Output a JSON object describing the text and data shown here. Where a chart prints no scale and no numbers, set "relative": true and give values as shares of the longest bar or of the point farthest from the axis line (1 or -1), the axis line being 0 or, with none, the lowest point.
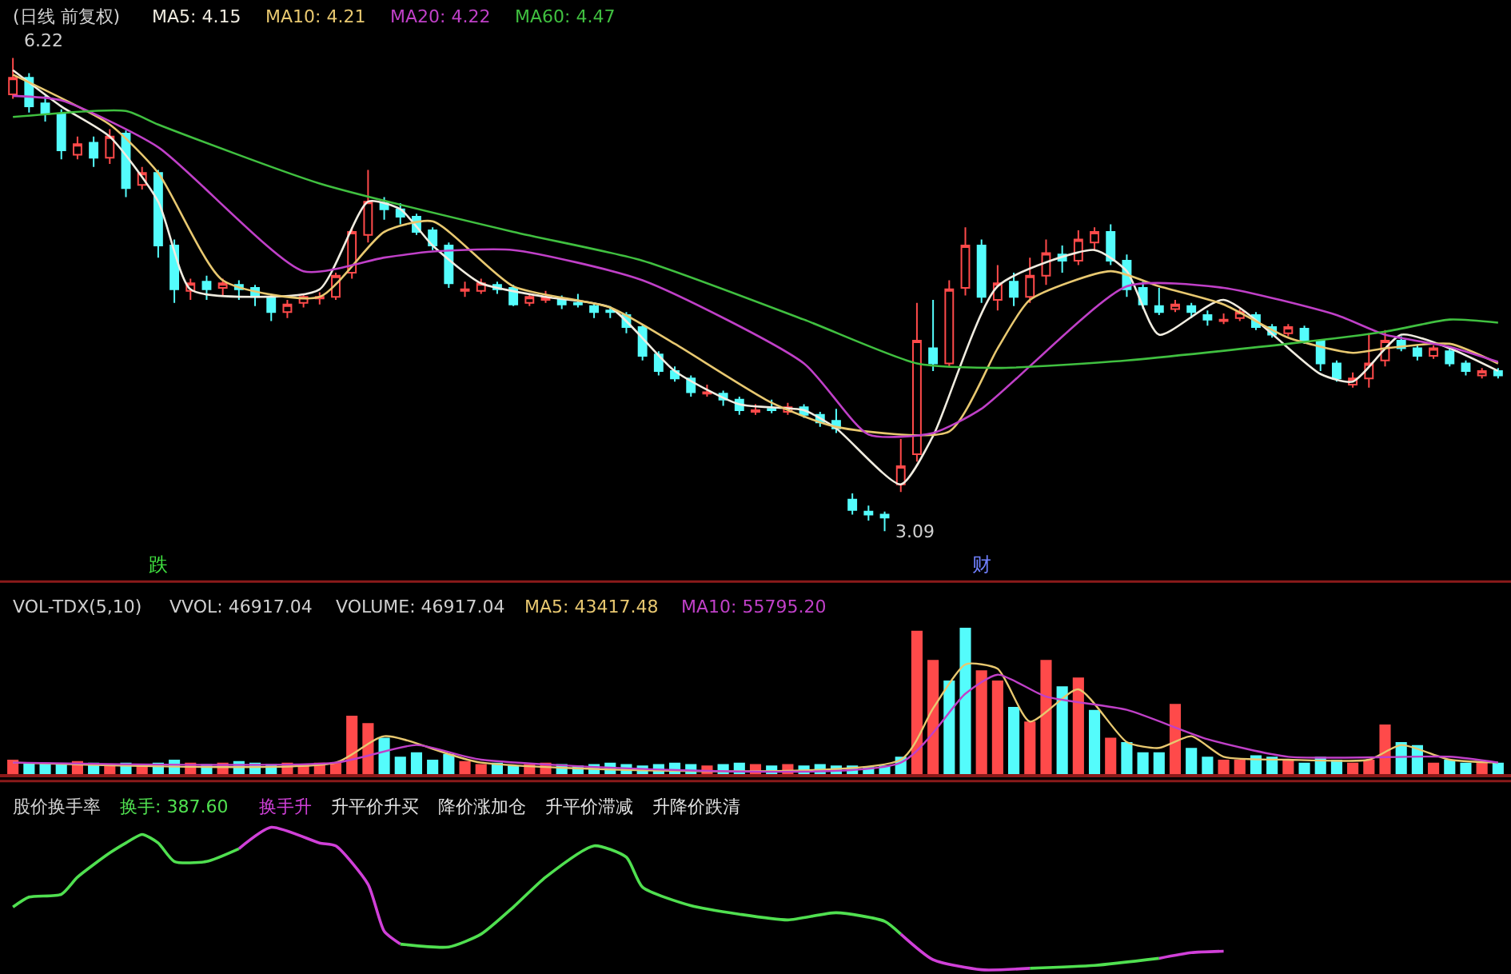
{
  "chart_data": [
    {
      "type": "candlestick",
      "title": "(日线 前复权)",
      "categories": [
        null,
        null,
        null,
        null,
        null,
        null,
        null,
        null,
        null,
        null,
        null,
        null,
        null,
        null,
        null,
        null,
        null,
        null,
        null,
        null,
        null,
        null,
        null,
        null,
        null,
        null,
        null,
        null,
        null,
        null,
        null,
        null,
        null,
        null,
        null,
        null,
        null,
        null,
        null,
        null,
        null,
        null,
        null,
        null,
        null,
        null,
        null,
        null,
        null,
        null,
        null,
        null,
        null,
        null,
        null,
        null,
        null,
        null,
        null,
        null,
        null,
        null,
        null,
        null,
        null,
        null,
        null,
        null,
        null,
        null,
        null,
        null,
        null,
        null,
        null,
        null,
        null,
        null,
        null,
        null,
        null,
        null,
        null,
        null,
        null,
        null,
        null,
        null,
        null,
        null,
        null,
        null,
        null
      ],
      "ohlc": [
        [
          5.98,
          6.22,
          5.95,
          6.09
        ],
        [
          6.09,
          6.12,
          5.86,
          5.9
        ],
        [
          5.92,
          5.97,
          5.8,
          5.85
        ],
        [
          5.85,
          5.88,
          5.55,
          5.61
        ],
        [
          5.58,
          5.7,
          5.55,
          5.65
        ],
        [
          5.66,
          5.7,
          5.5,
          5.56
        ],
        [
          5.56,
          5.75,
          5.52,
          5.7
        ],
        [
          5.72,
          5.74,
          5.3,
          5.36
        ],
        [
          5.38,
          5.5,
          5.35,
          5.46
        ],
        [
          5.46,
          5.48,
          4.9,
          4.98
        ],
        [
          4.98,
          5.02,
          4.6,
          4.69
        ],
        [
          4.68,
          4.76,
          4.62,
          4.73
        ],
        [
          4.74,
          4.78,
          4.62,
          4.69
        ],
        [
          4.7,
          4.76,
          4.65,
          4.73
        ],
        [
          4.72,
          4.75,
          4.62,
          4.69
        ],
        [
          4.7,
          4.72,
          4.58,
          4.64
        ],
        [
          4.64,
          4.66,
          4.48,
          4.54
        ],
        [
          4.54,
          4.62,
          4.5,
          4.59
        ],
        [
          4.6,
          4.66,
          4.57,
          4.64
        ],
        [
          4.63,
          4.67,
          4.59,
          4.64
        ],
        [
          4.64,
          4.8,
          4.62,
          4.78
        ],
        [
          4.8,
          5.1,
          4.76,
          5.07
        ],
        [
          5.05,
          5.48,
          5.0,
          5.27
        ],
        [
          5.26,
          5.3,
          5.15,
          5.22
        ],
        [
          5.22,
          5.26,
          5.12,
          5.17
        ],
        [
          5.17,
          5.19,
          5.05,
          5.07
        ],
        [
          5.08,
          5.1,
          4.95,
          4.98
        ],
        [
          4.98,
          5.0,
          4.7,
          4.73
        ],
        [
          4.68,
          4.74,
          4.64,
          4.69
        ],
        [
          4.68,
          4.76,
          4.66,
          4.73
        ],
        [
          4.72,
          4.74,
          4.66,
          4.69
        ],
        [
          4.7,
          4.72,
          4.58,
          4.59
        ],
        [
          4.6,
          4.66,
          4.58,
          4.64
        ],
        [
          4.62,
          4.68,
          4.6,
          4.64
        ],
        [
          4.63,
          4.65,
          4.56,
          4.59
        ],
        [
          4.6,
          4.66,
          4.57,
          4.59
        ],
        [
          4.58,
          4.6,
          4.5,
          4.54
        ],
        [
          4.55,
          4.58,
          4.5,
          4.54
        ],
        [
          4.52,
          4.54,
          4.4,
          4.44
        ],
        [
          4.44,
          4.46,
          4.22,
          4.25
        ],
        [
          4.26,
          4.28,
          4.12,
          4.15
        ],
        [
          4.15,
          4.18,
          4.08,
          4.1
        ],
        [
          4.1,
          4.12,
          3.98,
          4.01
        ],
        [
          4.0,
          4.06,
          3.98,
          4.01
        ],
        [
          4.0,
          4.02,
          3.92,
          3.96
        ],
        [
          3.96,
          3.98,
          3.86,
          3.89
        ],
        [
          3.88,
          3.93,
          3.86,
          3.89
        ],
        [
          3.9,
          3.96,
          3.87,
          3.89
        ],
        [
          3.88,
          3.94,
          3.86,
          3.91
        ],
        [
          3.91,
          3.93,
          3.84,
          3.86
        ],
        [
          3.86,
          3.88,
          3.78,
          3.81
        ],
        [
          3.82,
          3.9,
          3.74,
          3.77
        ],
        [
          3.3,
          3.34,
          3.2,
          3.23
        ],
        [
          3.22,
          3.26,
          3.16,
          3.2
        ],
        [
          3.2,
          3.22,
          3.09,
          3.18
        ],
        [
          3.4,
          3.7,
          3.35,
          3.52
        ],
        [
          3.6,
          4.6,
          3.55,
          4.35
        ],
        [
          4.3,
          4.62,
          4.15,
          4.2
        ],
        [
          4.2,
          4.75,
          4.18,
          4.69
        ],
        [
          4.7,
          5.1,
          4.65,
          4.98
        ],
        [
          4.98,
          5.02,
          4.6,
          4.64
        ],
        [
          4.62,
          4.85,
          4.55,
          4.73
        ],
        [
          4.74,
          4.8,
          4.58,
          4.64
        ],
        [
          4.64,
          4.9,
          4.6,
          4.78
        ],
        [
          4.78,
          5.02,
          4.72,
          4.93
        ],
        [
          4.92,
          4.98,
          4.8,
          4.88
        ],
        [
          4.88,
          5.08,
          4.85,
          5.02
        ],
        [
          5.0,
          5.1,
          4.95,
          5.07
        ],
        [
          5.07,
          5.12,
          4.85,
          4.88
        ],
        [
          4.88,
          4.92,
          4.64,
          4.69
        ],
        [
          4.7,
          4.74,
          4.56,
          4.59
        ],
        [
          4.58,
          4.7,
          4.52,
          4.54
        ],
        [
          4.56,
          4.62,
          4.54,
          4.59
        ],
        [
          4.58,
          4.6,
          4.5,
          4.54
        ],
        [
          4.52,
          4.55,
          4.45,
          4.49
        ],
        [
          4.48,
          4.53,
          4.46,
          4.49
        ],
        [
          4.5,
          4.56,
          4.48,
          4.54
        ],
        [
          4.52,
          4.54,
          4.42,
          4.44
        ],
        [
          4.44,
          4.46,
          4.37,
          4.39
        ],
        [
          4.4,
          4.46,
          4.38,
          4.44
        ],
        [
          4.43,
          4.45,
          4.33,
          4.35
        ],
        [
          4.35,
          4.36,
          4.15,
          4.2
        ],
        [
          4.2,
          4.22,
          4.08,
          4.1
        ],
        [
          4.06,
          4.14,
          4.04,
          4.1
        ],
        [
          4.1,
          4.4,
          4.04,
          4.2
        ],
        [
          4.22,
          4.42,
          4.18,
          4.35
        ],
        [
          4.35,
          4.38,
          4.28,
          4.3
        ],
        [
          4.3,
          4.32,
          4.22,
          4.25
        ],
        [
          4.25,
          4.32,
          4.23,
          4.3
        ],
        [
          4.28,
          4.3,
          4.18,
          4.2
        ],
        [
          4.2,
          4.22,
          4.12,
          4.15
        ],
        [
          4.12,
          4.17,
          4.1,
          4.15
        ],
        [
          4.15,
          4.17,
          4.1,
          4.12
        ]
      ],
      "colors": [
        "#ff4a4a",
        "#54fcfc",
        "#54fcfc",
        "#54fcfc",
        "#ff4a4a",
        "#54fcfc",
        "#ff4a4a",
        "#54fcfc",
        "#ff4a4a",
        "#54fcfc",
        "#54fcfc",
        "#ff4a4a",
        "#54fcfc",
        "#ff4a4a",
        "#54fcfc",
        "#54fcfc",
        "#54fcfc",
        "#ff4a4a",
        "#ff4a4a",
        "#ff4a4a",
        "#ff4a4a",
        "#ff4a4a",
        "#ff4a4a",
        "#54fcfc",
        "#54fcfc",
        "#54fcfc",
        "#54fcfc",
        "#54fcfc",
        "#ff4a4a",
        "#ff4a4a",
        "#54fcfc",
        "#54fcfc",
        "#ff4a4a",
        "#ff4a4a",
        "#54fcfc",
        "#54fcfc",
        "#54fcfc",
        "#54fcfc",
        "#54fcfc",
        "#54fcfc",
        "#54fcfc",
        "#54fcfc",
        "#54fcfc",
        "#ff4a4a",
        "#54fcfc",
        "#54fcfc",
        "#ff4a4a",
        "#54fcfc",
        "#ff4a4a",
        "#54fcfc",
        "#54fcfc",
        "#54fcfc",
        "#54fcfc",
        "#54fcfc",
        "#54fcfc",
        "#ff4a4a",
        "#ff4a4a",
        "#54fcfc",
        "#ff4a4a",
        "#ff4a4a",
        "#54fcfc",
        "#ff4a4a",
        "#54fcfc",
        "#ff4a4a",
        "#ff4a4a",
        "#54fcfc",
        "#ff4a4a",
        "#ff4a4a",
        "#54fcfc",
        "#54fcfc",
        "#54fcfc",
        "#54fcfc",
        "#ff4a4a",
        "#54fcfc",
        "#54fcfc",
        "#ff4a4a",
        "#ff4a4a",
        "#54fcfc",
        "#54fcfc",
        "#ff4a4a",
        "#54fcfc",
        "#54fcfc",
        "#54fcfc",
        "#ff4a4a",
        "#ff4a4a",
        "#ff4a4a",
        "#54fcfc",
        "#54fcfc",
        "#ff4a4a",
        "#54fcfc",
        "#54fcfc",
        "#ff4a4a",
        "#54fcfc"
      ],
      "series": [
        {
          "type": "line",
          "name": "MA5: 4.15",
          "color": "#f0ece0",
          "values": [
            6.14,
            null,
            null,
            5.9,
            null,
            null,
            5.7,
            null,
            null,
            5.27,
            null,
            4.69,
            null,
            null,
            null,
            4.64,
            null,
            null,
            null,
            4.69,
            null,
            null,
            5.27,
            null,
            5.22,
            null,
            4.98,
            null,
            null,
            4.73,
            null,
            null,
            null,
            4.64,
            null,
            null,
            null,
            4.57,
            null,
            null,
            null,
            4.15,
            null,
            null,
            null,
            3.93,
            null,
            null,
            null,
            3.89,
            null,
            3.77,
            null,
            null,
            null,
            3.4,
            null,
            3.72,
            null,
            null,
            null,
            4.71,
            null,
            null,
            null,
            null,
            null,
            4.95,
            null,
            4.81,
            null,
            4.39,
            null,
            null,
            null,
            4.62,
            null,
            null,
            null,
            null,
            null,
            4.13,
            null,
            4.08,
            null,
            null,
            4.39,
            null,
            null,
            4.3,
            null,
            null,
            4.15
          ]
        },
        {
          "type": "line",
          "name": "MA10: 4.21",
          "color": "#e8c870",
          "values": [
            6.11,
            null,
            null,
            null,
            null,
            null,
            5.78,
            null,
            null,
            5.46,
            null,
            null,
            null,
            4.75,
            null,
            null,
            null,
            null,
            null,
            4.64,
            null,
            null,
            null,
            5.07,
            null,
            null,
            5.14,
            null,
            null,
            null,
            null,
            4.71,
            null,
            null,
            null,
            null,
            null,
            4.57,
            null,
            null,
            null,
            4.33,
            null,
            null,
            null,
            null,
            null,
            3.94,
            null,
            null,
            null,
            3.78,
            null,
            null,
            null,
            null,
            null,
            null,
            3.75,
            null,
            null,
            4.3,
            null,
            4.62,
            null,
            null,
            null,
            null,
            4.81,
            null,
            null,
            4.71,
            null,
            null,
            null,
            4.59,
            null,
            null,
            null,
            4.37,
            null,
            null,
            null,
            4.27,
            null,
            4.3,
            null,
            null,
            null,
            4.33,
            null,
            null,
            4.2
          ]
        },
        {
          "type": "line",
          "name": "MA20: 4.22",
          "color": "#c040c8",
          "values": [
            5.97,
            null,
            null,
            5.94,
            null,
            null,
            null,
            null,
            null,
            5.63,
            null,
            null,
            null,
            null,
            null,
            null,
            null,
            null,
            4.81,
            null,
            null,
            null,
            null,
            4.9,
            null,
            null,
            4.94,
            null,
            null,
            null,
            null,
            4.95,
            null,
            null,
            null,
            null,
            null,
            null,
            null,
            4.75,
            null,
            null,
            null,
            null,
            null,
            null,
            null,
            null,
            null,
            4.2,
            null,
            null,
            null,
            3.73,
            null,
            null,
            null,
            3.74,
            null,
            null,
            3.9,
            null,
            null,
            null,
            null,
            null,
            null,
            null,
            null,
            4.71,
            null,
            null,
            null,
            null,
            null,
            4.7,
            null,
            null,
            null,
            null,
            null,
            null,
            4.52,
            null,
            null,
            4.39,
            null,
            null,
            null,
            4.31,
            null,
            null,
            4.21
          ]
        },
        {
          "type": "line",
          "name": "MA60: 4.47",
          "color": "#40c040",
          "values": [
            5.83,
            null,
            null,
            null,
            null,
            null,
            null,
            5.87,
            null,
            5.78,
            null,
            null,
            null,
            null,
            null,
            null,
            null,
            null,
            null,
            5.39,
            null,
            null,
            null,
            null,
            null,
            null,
            null,
            null,
            null,
            null,
            null,
            5.07,
            null,
            null,
            null,
            null,
            null,
            null,
            null,
            4.88,
            null,
            null,
            null,
            null,
            null,
            null,
            null,
            null,
            null,
            4.49,
            null,
            null,
            null,
            null,
            null,
            null,
            4.2,
            null,
            null,
            null,
            null,
            4.17,
            null,
            null,
            null,
            null,
            null,
            null,
            null,
            4.22,
            null,
            null,
            null,
            null,
            null,
            null,
            null,
            null,
            null,
            4.33,
            null,
            null,
            null,
            null,
            null,
            4.41,
            null,
            null,
            null,
            4.49,
            null,
            null,
            4.47
          ]
        }
      ],
      "annotations": [
        "6.22",
        "3.09",
        "跌",
        "财"
      ]
    },
    {
      "type": "bar",
      "relative": true,
      "title": "VOL-TDX(5,10)",
      "annotations": [
        "VVOL: 46917.04",
        "VOLUME: 46917.04"
      ],
      "categories": [
        null,
        null,
        null,
        null,
        null,
        null,
        null,
        null,
        null,
        null,
        null,
        null,
        null,
        null,
        null,
        null,
        null,
        null,
        null,
        null,
        null,
        null,
        null,
        null,
        null,
        null,
        null,
        null,
        null,
        null,
        null,
        null,
        null,
        null,
        null,
        null,
        null,
        null,
        null,
        null,
        null,
        null,
        null,
        null,
        null,
        null,
        null,
        null,
        null,
        null,
        null,
        null,
        null,
        null,
        null,
        null,
        null,
        null,
        null,
        null,
        null,
        null,
        null,
        null,
        null,
        null,
        null,
        null,
        null,
        null,
        null,
        null,
        null,
        null,
        null,
        null,
        null,
        null,
        null,
        null,
        null,
        null,
        null,
        null,
        null,
        null,
        null,
        null,
        null,
        null,
        null,
        null,
        null
      ],
      "series": [
        {
          "type": "bar",
          "values": [
            0.1,
            0.08,
            0.08,
            0.07,
            0.09,
            0.08,
            0.07,
            0.08,
            0.07,
            0.08,
            0.1,
            0.08,
            0.07,
            0.08,
            0.09,
            0.08,
            0.07,
            0.08,
            0.07,
            0.08,
            0.08,
            0.4,
            0.35,
            0.25,
            0.12,
            0.15,
            0.1,
            0.14,
            0.09,
            0.07,
            0.08,
            0.06,
            0.07,
            0.08,
            0.07,
            0.06,
            0.07,
            0.08,
            0.07,
            0.06,
            0.07,
            0.08,
            0.07,
            0.06,
            0.07,
            0.08,
            0.07,
            0.06,
            0.07,
            0.06,
            0.07,
            0.06,
            0.06,
            0.05,
            0.06,
            0.12,
            0.98,
            0.78,
            0.64,
            1,
            0.71,
            0.64,
            0.46,
            0.36,
            0.78,
            0.6,
            0.66,
            0.44,
            0.25,
            0.22,
            0.15,
            0.15,
            0.48,
            0.18,
            0.12,
            0.1,
            0.1,
            0.13,
            0.12,
            0.1,
            0.08,
            0.12,
            0.1,
            0.08,
            0.1,
            0.34,
            0.22,
            0.2,
            0.08,
            0.1,
            0.08,
            0.08,
            0.08
          ],
          "colors": [
            "#ff4a4a",
            "#54fcfc",
            "#54fcfc",
            "#54fcfc",
            "#ff4a4a",
            "#54fcfc",
            "#ff4a4a",
            "#54fcfc",
            "#ff4a4a",
            "#54fcfc",
            "#54fcfc",
            "#ff4a4a",
            "#54fcfc",
            "#ff4a4a",
            "#54fcfc",
            "#54fcfc",
            "#54fcfc",
            "#ff4a4a",
            "#ff4a4a",
            "#ff4a4a",
            "#ff4a4a",
            "#ff4a4a",
            "#ff4a4a",
            "#54fcfc",
            "#54fcfc",
            "#54fcfc",
            "#54fcfc",
            "#54fcfc",
            "#ff4a4a",
            "#ff4a4a",
            "#54fcfc",
            "#54fcfc",
            "#ff4a4a",
            "#ff4a4a",
            "#54fcfc",
            "#54fcfc",
            "#54fcfc",
            "#54fcfc",
            "#54fcfc",
            "#54fcfc",
            "#54fcfc",
            "#54fcfc",
            "#54fcfc",
            "#ff4a4a",
            "#54fcfc",
            "#54fcfc",
            "#ff4a4a",
            "#54fcfc",
            "#ff4a4a",
            "#54fcfc",
            "#54fcfc",
            "#54fcfc",
            "#54fcfc",
            "#54fcfc",
            "#54fcfc",
            "#54fcfc",
            "#ff4a4a",
            "#ff4a4a",
            "#54fcfc",
            "#54fcfc",
            "#ff4a4a",
            "#ff4a4a",
            "#54fcfc",
            "#ff4a4a",
            "#ff4a4a",
            "#54fcfc",
            "#ff4a4a",
            "#54fcfc",
            "#ff4a4a",
            "#54fcfc",
            "#54fcfc",
            "#54fcfc",
            "#ff4a4a",
            "#54fcfc",
            "#54fcfc",
            "#ff4a4a",
            "#ff4a4a",
            "#54fcfc",
            "#54fcfc",
            "#ff4a4a",
            "#54fcfc",
            "#54fcfc",
            "#54fcfc",
            "#ff4a4a",
            "#ff4a4a",
            "#ff4a4a",
            "#54fcfc",
            "#54fcfc",
            "#ff4a4a",
            "#54fcfc",
            "#54fcfc",
            "#ff4a4a",
            "#54fcfc"
          ]
        },
        {
          "type": "line",
          "name": "MA5: 43417.48",
          "color": "#e8c870",
          "values": [
            0.08,
            null,
            null,
            null,
            null,
            null,
            null,
            null,
            null,
            null,
            null,
            null,
            null,
            null,
            null,
            null,
            null,
            null,
            null,
            null,
            0.08,
            null,
            null,
            0.26,
            null,
            null,
            null,
            null,
            null,
            0.08,
            null,
            null,
            null,
            null,
            null,
            null,
            null,
            null,
            null,
            null,
            null,
            null,
            null,
            null,
            null,
            null,
            null,
            null,
            null,
            null,
            null,
            null,
            null,
            null,
            null,
            0.1,
            null,
            0.45,
            null,
            0.75,
            null,
            0.72,
            null,
            0.36,
            null,
            null,
            0.58,
            null,
            null,
            0.22,
            null,
            0.18,
            null,
            0.26,
            null,
            0.12,
            null,
            null,
            null,
            0.1,
            null,
            null,
            null,
            null,
            0.1,
            null,
            0.2,
            null,
            null,
            0.1,
            null,
            null,
            0.08
          ]
        },
        {
          "type": "line",
          "name": "MA10: 55795.20",
          "color": "#c040c8",
          "values": [
            0.08,
            null,
            null,
            null,
            null,
            null,
            null,
            null,
            null,
            null,
            null,
            null,
            null,
            null,
            null,
            null,
            null,
            null,
            null,
            null,
            0.08,
            null,
            null,
            null,
            null,
            0.2,
            null,
            null,
            null,
            0.1,
            null,
            null,
            null,
            null,
            null,
            null,
            null,
            null,
            null,
            null,
            null,
            null,
            null,
            null,
            null,
            null,
            null,
            null,
            null,
            null,
            null,
            null,
            null,
            null,
            null,
            0.08,
            null,
            null,
            null,
            0.55,
            null,
            0.68,
            null,
            null,
            0.53,
            null,
            null,
            null,
            null,
            0.44,
            null,
            null,
            null,
            null,
            0.24,
            null,
            null,
            null,
            null,
            0.12,
            null,
            null,
            null,
            null,
            null,
            null,
            null,
            null,
            null,
            0.12,
            null,
            null,
            0.08
          ]
        }
      ]
    },
    {
      "type": "line",
      "relative": true,
      "title": "股价换手率",
      "annotations": [
        "升平价升买",
        "降价涨加仓",
        "升平价滞减",
        "升降价跌清"
      ],
      "categories": [
        null,
        null,
        null,
        null,
        null,
        null,
        null,
        null,
        null,
        null,
        null,
        null,
        null,
        null,
        null,
        null,
        null,
        null,
        null,
        null,
        null,
        null,
        null,
        null,
        null,
        null,
        null,
        null,
        null,
        null,
        null,
        null,
        null,
        null,
        null,
        null,
        null,
        null,
        null,
        null,
        null,
        null,
        null,
        null,
        null,
        null,
        null,
        null,
        null,
        null,
        null,
        null,
        null,
        null,
        null,
        null,
        null,
        null,
        null,
        null,
        null,
        null,
        null,
        null,
        null,
        null,
        null,
        null,
        null,
        null,
        null,
        null,
        null,
        null,
        null,
        null,
        null,
        null,
        null,
        null,
        null,
        null,
        null,
        null,
        null,
        null,
        null,
        null,
        null,
        null,
        null,
        null,
        null
      ],
      "series": [
        {
          "name": "换手: 387.60",
          "color": "#50e050",
          "values": [
            0.44,
            0.51,
            null,
            0.53,
            0.65,
            null,
            0.82,
            0.89,
            0.95,
            0.89,
            0.76,
            null,
            0.76,
            null,
            0.85,
            null,
            null,
            null,
            null,
            null,
            null,
            null,
            null,
            null,
            null,
            null,
            null,
            null,
            null,
            null,
            null,
            null,
            null,
            null,
            null,
            null,
            null,
            null,
            null,
            null,
            null,
            null,
            null,
            null,
            null,
            null,
            null,
            null,
            null,
            null,
            null,
            null,
            null,
            null,
            null,
            null,
            null,
            null,
            null,
            null,
            null,
            null,
            null,
            null,
            null,
            null,
            null,
            null,
            null,
            null,
            null,
            null,
            null,
            null,
            null,
            null,
            null,
            null,
            null,
            null,
            null,
            null,
            null,
            null,
            null,
            null,
            null,
            null,
            null,
            null,
            null,
            null,
            null
          ]
        },
        {
          "name": "换手升",
          "color": "#d040d8",
          "values": [
            null,
            null,
            null,
            null,
            null,
            null,
            null,
            null,
            null,
            null,
            null,
            null,
            null,
            null,
            0.85,
            null,
            1.0,
            null,
            null,
            0.89,
            0.87,
            null,
            0.6,
            0.27,
            0.18,
            null,
            null,
            null,
            null,
            null,
            null,
            null,
            null,
            null,
            null,
            null,
            null,
            null,
            null,
            null,
            null,
            null,
            null,
            null,
            null,
            null,
            null,
            null,
            null,
            null,
            null,
            null,
            null,
            null,
            null,
            null,
            null,
            null,
            null,
            null,
            null,
            null,
            null,
            null,
            null,
            null,
            null,
            null,
            null,
            null,
            null,
            null,
            null,
            null,
            null,
            null,
            null,
            null,
            null,
            null,
            null,
            null,
            null,
            null,
            null,
            null,
            null,
            null,
            null,
            null,
            null,
            null,
            null
          ]
        },
        {
          "color": "#50e050",
          "values": [
            null,
            null,
            null,
            null,
            null,
            null,
            null,
            null,
            null,
            null,
            null,
            null,
            null,
            null,
            null,
            null,
            null,
            null,
            null,
            null,
            null,
            null,
            null,
            null,
            0.18,
            null,
            null,
            0.16,
            null,
            0.25,
            null,
            0.44,
            null,
            0.65,
            null,
            null,
            0.87,
            null,
            0.79,
            0.58,
            null,
            null,
            0.45,
            null,
            null,
            0.39,
            null,
            null,
            0.35,
            null,
            null,
            0.4,
            null,
            null,
            0.34,
            0.25,
            null,
            null,
            null,
            null,
            null,
            null,
            null,
            null,
            null,
            null,
            null,
            null,
            null,
            null,
            null,
            null,
            null,
            null,
            null,
            null,
            null,
            null,
            null,
            null,
            null,
            null,
            null,
            null,
            null,
            null,
            null,
            null,
            null,
            null,
            null,
            null,
            null
          ]
        },
        {
          "color": "#d040d8",
          "values": [
            null,
            null,
            null,
            null,
            null,
            null,
            null,
            null,
            null,
            null,
            null,
            null,
            null,
            null,
            null,
            null,
            null,
            null,
            null,
            null,
            null,
            null,
            null,
            null,
            null,
            null,
            null,
            null,
            null,
            null,
            null,
            null,
            null,
            null,
            null,
            null,
            null,
            null,
            null,
            null,
            null,
            null,
            null,
            null,
            null,
            null,
            null,
            null,
            null,
            null,
            null,
            null,
            null,
            null,
            null,
            0.25,
            null,
            0.07,
            null,
            null,
            0,
            null,
            null,
            0.01,
            null,
            null,
            null,
            null,
            null,
            null,
            null,
            null,
            null,
            null,
            null,
            null,
            null,
            null,
            null,
            null,
            null,
            null,
            null,
            null,
            null,
            null,
            null,
            null,
            null,
            null,
            null,
            null,
            null
          ]
        },
        {
          "color": "#50e050",
          "values": [
            null,
            null,
            null,
            null,
            null,
            null,
            null,
            null,
            null,
            null,
            null,
            null,
            null,
            null,
            null,
            null,
            null,
            null,
            null,
            null,
            null,
            null,
            null,
            null,
            null,
            null,
            null,
            null,
            null,
            null,
            null,
            null,
            null,
            null,
            null,
            null,
            null,
            null,
            null,
            null,
            null,
            null,
            null,
            null,
            null,
            null,
            null,
            null,
            null,
            null,
            null,
            null,
            null,
            null,
            null,
            null,
            null,
            null,
            null,
            null,
            null,
            null,
            null,
            0.01,
            null,
            null,
            null,
            0.03,
            null,
            null,
            null,
            0.08,
            null,
            null,
            null,
            null,
            null,
            null,
            null,
            null,
            null,
            null,
            null,
            null,
            null,
            null,
            null,
            null,
            null,
            null,
            null,
            null,
            null
          ]
        },
        {
          "color": "#d040d8",
          "values": [
            null,
            null,
            null,
            null,
            null,
            null,
            null,
            null,
            null,
            null,
            null,
            null,
            null,
            null,
            null,
            null,
            null,
            null,
            null,
            null,
            null,
            null,
            null,
            null,
            null,
            null,
            null,
            null,
            null,
            null,
            null,
            null,
            null,
            null,
            null,
            null,
            null,
            null,
            null,
            null,
            null,
            null,
            null,
            null,
            null,
            null,
            null,
            null,
            null,
            null,
            null,
            null,
            null,
            null,
            null,
            null,
            null,
            null,
            null,
            null,
            null,
            null,
            null,
            null,
            null,
            null,
            null,
            null,
            null,
            null,
            null,
            0.08,
            null,
            0.12,
            null,
            0.13,
            null,
            null,
            null,
            null,
            null,
            null,
            null,
            null,
            null,
            null,
            null,
            null,
            null,
            null,
            null,
            null,
            null
          ]
        }
      ]
    }
  ]
}
